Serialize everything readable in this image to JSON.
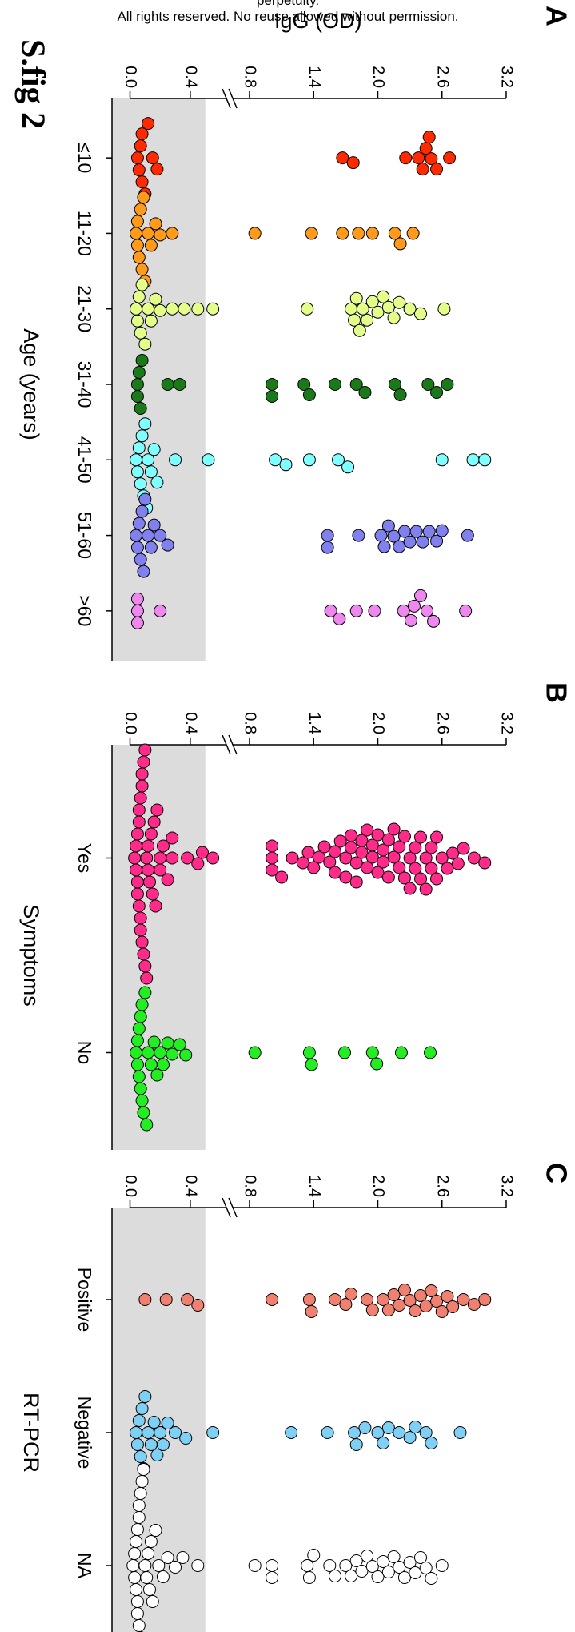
{
  "figure_title": "S.fig 2",
  "watermark_lines": [
    "perpetuity.",
    "All rights reserved. No reuse allowed without permission."
  ],
  "chart_data": [
    {
      "type": "strip",
      "panel": "A",
      "ylabel": "IgG (OD)",
      "xlabel": "Age (years)",
      "categories": [
        "≤10",
        "11-20",
        "21-30",
        "31-40",
        "41-50",
        "51-60",
        ">60"
      ],
      "colors": [
        "#ff2a00",
        "#ff9a1a",
        "#e3ff8a",
        "#1a7a1a",
        "#7fffff",
        "#8080ee",
        "#ee88ee"
      ],
      "values": [
        [
          0.05,
          0.06,
          0.07,
          0.08,
          0.08,
          0.1,
          0.12,
          0.15,
          0.18,
          1.67,
          1.77,
          2.26,
          2.38,
          2.42,
          2.45,
          2.48,
          2.5,
          2.55,
          2.67
        ],
        [
          0.04,
          0.05,
          0.05,
          0.06,
          0.07,
          0.08,
          0.09,
          0.1,
          0.12,
          0.14,
          0.17,
          0.2,
          0.28,
          0.85,
          1.38,
          1.67,
          1.82,
          1.95,
          2.16,
          2.21,
          2.33
        ],
        [
          0.04,
          0.05,
          0.06,
          0.07,
          0.08,
          0.1,
          0.12,
          0.14,
          0.17,
          0.2,
          0.28,
          0.36,
          0.45,
          0.55,
          1.34,
          1.75,
          1.78,
          1.8,
          1.83,
          1.86,
          1.9,
          1.95,
          2.0,
          2.05,
          2.1,
          2.15,
          2.2,
          2.3,
          2.4,
          2.62
        ],
        [
          0.05,
          0.05,
          0.06,
          0.07,
          0.08,
          0.25,
          0.33,
          1.01,
          1.01,
          1.31,
          1.36,
          1.6,
          1.8,
          1.88,
          2.16,
          2.21,
          2.47,
          2.55,
          2.65
        ],
        [
          0.04,
          0.05,
          0.06,
          0.07,
          0.08,
          0.09,
          0.1,
          0.11,
          0.12,
          0.14,
          0.16,
          0.18,
          0.3,
          0.52,
          1.04,
          1.14,
          1.36,
          1.63,
          1.72,
          2.6,
          2.89,
          3.0
        ],
        [
          0.04,
          0.05,
          0.06,
          0.07,
          0.08,
          0.09,
          0.1,
          0.12,
          0.14,
          0.16,
          0.2,
          0.25,
          1.53,
          1.53,
          1.82,
          2.03,
          2.06,
          2.1,
          2.15,
          2.2,
          2.25,
          2.3,
          2.36,
          2.42,
          2.48,
          2.55,
          2.6,
          2.84
        ],
        [
          0.05,
          0.05,
          0.05,
          0.2,
          1.56,
          1.64,
          1.8,
          1.97,
          2.24,
          2.31,
          2.34,
          2.4,
          2.46,
          2.52,
          2.82
        ]
      ],
      "ylim": [
        0,
        3.2
      ],
      "ybreak": [
        0.6,
        0.7
      ],
      "shaded_range": [
        0,
        0.5
      ],
      "yticks": [
        {
          "value": 0,
          "label": "0.0"
        },
        0.4,
        {
          "value": 0.8,
          "label": "0.8"
        },
        1.4,
        {
          "value": 2,
          "label": "2.0"
        },
        2.6,
        3.2
      ]
    },
    {
      "type": "strip",
      "panel": "B",
      "xlabel": "Symptoms",
      "categories": [
        "Yes",
        "No"
      ],
      "colors": [
        "#ff2a8a",
        "#22ee22"
      ],
      "values": [
        [
          0.03,
          0.04,
          0.04,
          0.05,
          0.05,
          0.05,
          0.06,
          0.06,
          0.06,
          0.07,
          0.07,
          0.07,
          0.08,
          0.08,
          0.08,
          0.09,
          0.09,
          0.1,
          0.1,
          0.11,
          0.11,
          0.12,
          0.12,
          0.13,
          0.14,
          0.15,
          0.16,
          0.17,
          0.18,
          0.2,
          0.2,
          0.22,
          0.25,
          0.28,
          0.28,
          0.38,
          0.45,
          0.48,
          0.55,
          1.01,
          1.01,
          1.01,
          1.1,
          1.2,
          1.3,
          1.35,
          1.4,
          1.45,
          1.5,
          1.55,
          1.6,
          1.6,
          1.65,
          1.7,
          1.7,
          1.75,
          1.75,
          1.8,
          1.8,
          1.85,
          1.85,
          1.9,
          1.9,
          1.95,
          1.95,
          2.0,
          2.0,
          2.05,
          2.05,
          2.1,
          2.1,
          2.15,
          2.15,
          2.2,
          2.2,
          2.25,
          2.25,
          2.3,
          2.3,
          2.35,
          2.35,
          2.4,
          2.4,
          2.45,
          2.45,
          2.5,
          2.5,
          2.55,
          2.55,
          2.6,
          2.65,
          2.7,
          2.75,
          2.8,
          2.9,
          3.0
        ],
        [
          0.04,
          0.05,
          0.05,
          0.06,
          0.06,
          0.07,
          0.07,
          0.08,
          0.08,
          0.09,
          0.1,
          0.11,
          0.12,
          0.14,
          0.16,
          0.18,
          0.2,
          0.22,
          0.25,
          0.28,
          0.33,
          0.37,
          0.85,
          1.36,
          1.38,
          1.69,
          1.95,
          1.99,
          2.22,
          2.49
        ]
      ],
      "ylim": [
        0,
        3.2
      ],
      "ybreak": [
        0.6,
        0.7
      ],
      "shaded_range": [
        0,
        0.5
      ],
      "yticks": [
        {
          "value": 0,
          "label": "0.0"
        },
        0.4,
        {
          "value": 0.8,
          "label": "0.8"
        },
        1.4,
        {
          "value": 2,
          "label": "2.0"
        },
        2.6,
        3.2
      ]
    },
    {
      "type": "strip",
      "panel": "C",
      "xlabel": "RT-PCR",
      "categories": [
        "Positive",
        "Negative",
        "NA"
      ],
      "colors": [
        "#f08070",
        "#7fd0f5",
        "#ffffff"
      ],
      "values": [
        [
          0.1,
          0.24,
          0.38,
          0.45,
          1.01,
          1.36,
          1.38,
          1.6,
          1.7,
          1.75,
          1.9,
          1.95,
          2.05,
          2.1,
          2.15,
          2.2,
          2.25,
          2.3,
          2.35,
          2.4,
          2.45,
          2.5,
          2.55,
          2.6,
          2.65,
          2.7,
          2.8,
          2.9,
          3.0
        ],
        [
          0.04,
          0.05,
          0.06,
          0.07,
          0.08,
          0.09,
          0.1,
          0.12,
          0.14,
          0.16,
          0.18,
          0.2,
          0.22,
          0.25,
          0.3,
          0.37,
          0.55,
          1.19,
          1.53,
          1.78,
          1.8,
          1.88,
          2.0,
          2.05,
          2.1,
          2.2,
          2.3,
          2.35,
          2.45,
          2.5,
          2.77
        ],
        [
          0.02,
          0.03,
          0.03,
          0.04,
          0.04,
          0.05,
          0.05,
          0.05,
          0.06,
          0.06,
          0.06,
          0.07,
          0.07,
          0.08,
          0.08,
          0.09,
          0.09,
          0.1,
          0.1,
          0.11,
          0.12,
          0.13,
          0.14,
          0.15,
          0.17,
          0.19,
          0.22,
          0.25,
          0.3,
          0.35,
          0.45,
          0.85,
          1.01,
          1.01,
          1.34,
          1.36,
          1.4,
          1.55,
          1.6,
          1.7,
          1.75,
          1.8,
          1.85,
          1.9,
          1.95,
          2.0,
          2.05,
          2.1,
          2.15,
          2.2,
          2.25,
          2.3,
          2.35,
          2.4,
          2.45,
          2.5,
          2.6
        ]
      ],
      "ylim": [
        0,
        3.2
      ],
      "ybreak": [
        0.6,
        0.7
      ],
      "shaded_range": [
        0,
        0.5
      ],
      "yticks": [
        {
          "value": 0,
          "label": "0.0"
        },
        0.4,
        {
          "value": 0.8,
          "label": "0.8"
        },
        1.4,
        {
          "value": 2,
          "label": "2.0"
        },
        2.6,
        3.2
      ]
    }
  ]
}
